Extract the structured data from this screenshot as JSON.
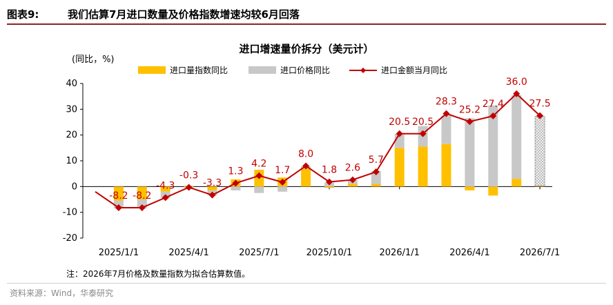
{
  "figure": {
    "label": "图表9:",
    "title": "我们估算7月进口数量及价格指数增速均较6月回落"
  },
  "chart_data": {
    "type": "bar",
    "title": "进口增速量价拆分（美元计）",
    "unit_label": "(同比，%)",
    "ylim": [
      -20,
      40
    ],
    "yticks": [
      -20,
      -10,
      0,
      10,
      20,
      30,
      40
    ],
    "x_tick_labels": [
      "2025/1/1",
      "2025/4/1",
      "2025/7/1",
      "2025/10/1",
      "2026/1/1",
      "2026/4/1",
      "2026/7/1"
    ],
    "periods": [
      "2024/12",
      "2025/1",
      "2025/2",
      "2025/3",
      "2025/4",
      "2025/5",
      "2025/6",
      "2025/7",
      "2025/8",
      "2025/9",
      "2025/10",
      "2025/11",
      "2025/12",
      "2026/1",
      "2026/2",
      "2026/3",
      "2026/4",
      "2026/5",
      "2026/6",
      "2026/7"
    ],
    "series": [
      {
        "name": "进口量指数同比",
        "kind": "bar",
        "color": "#ffc000",
        "values": [
          null,
          -5.5,
          -5.0,
          -2.0,
          0.3,
          -1.5,
          2.8,
          6.5,
          3.5,
          7.0,
          -0.5,
          1.0,
          1.0,
          15.0,
          15.5,
          16.5,
          -1.5,
          -3.5,
          3.0,
          0.3
        ]
      },
      {
        "name": "进口价格同比",
        "kind": "bar",
        "color": "#c8c8c8",
        "values": [
          null,
          -3.0,
          -3.5,
          -2.5,
          -0.5,
          -2.0,
          -1.5,
          -2.5,
          -2.0,
          1.0,
          1.5,
          1.5,
          5.0,
          5.5,
          8.0,
          11.0,
          26.5,
          31.5,
          32.5,
          27.0
        ]
      },
      {
        "name": "进口金额当月同比",
        "kind": "line",
        "color": "#c00000",
        "values": [
          -2.0,
          -8.2,
          -8.2,
          -4.3,
          -0.3,
          -3.3,
          1.3,
          4.2,
          1.7,
          8.0,
          1.8,
          2.6,
          5.7,
          20.5,
          20.5,
          28.3,
          25.2,
          27.4,
          36.0,
          27.5
        ],
        "labels": [
          null,
          "-8.2",
          "-8.2",
          "-4.3",
          "-0.3",
          "-3.3",
          "1.3",
          "4.2",
          "1.7",
          "8.0",
          "1.8",
          "2.6",
          "5.7",
          "20.5",
          "20.5",
          "28.3",
          "25.2",
          "27.4",
          "36.0",
          "27.5"
        ]
      }
    ],
    "estimated_period": "2026/7",
    "legend_position": "top",
    "grid": false
  },
  "note": "注：2026年7月价格及数量指数为拟合估算数值。",
  "source": "资料来源：Wind，华泰研究"
}
